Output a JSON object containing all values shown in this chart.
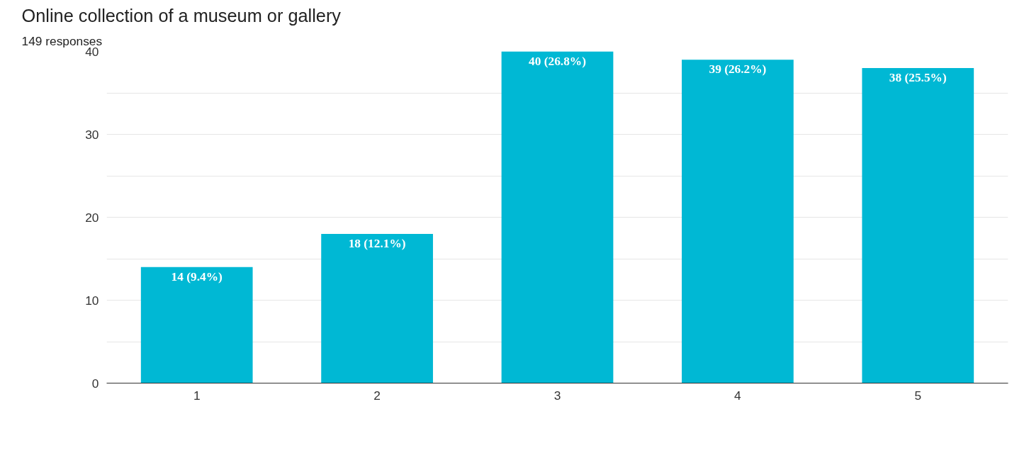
{
  "chart_data": {
    "type": "bar",
    "title": "Online collection of a museum or gallery",
    "subtitle": "149 responses",
    "categories": [
      "1",
      "2",
      "3",
      "4",
      "5"
    ],
    "values": [
      14,
      18,
      40,
      39,
      38
    ],
    "value_labels": [
      "14 (9.4%)",
      "18 (12.1%)",
      "40 (26.8%)",
      "39 (26.2%)",
      "38 (25.5%)"
    ],
    "color": "#00b8d4",
    "ylim": [
      0,
      40
    ],
    "yticks": [
      0,
      {
        "value": 5,
        "label": null
      },
      10,
      {
        "value": 15,
        "label": null
      },
      20,
      {
        "value": 25,
        "label": null
      },
      30,
      {
        "value": 35,
        "label": null
      },
      40
    ],
    "grid": "y"
  }
}
